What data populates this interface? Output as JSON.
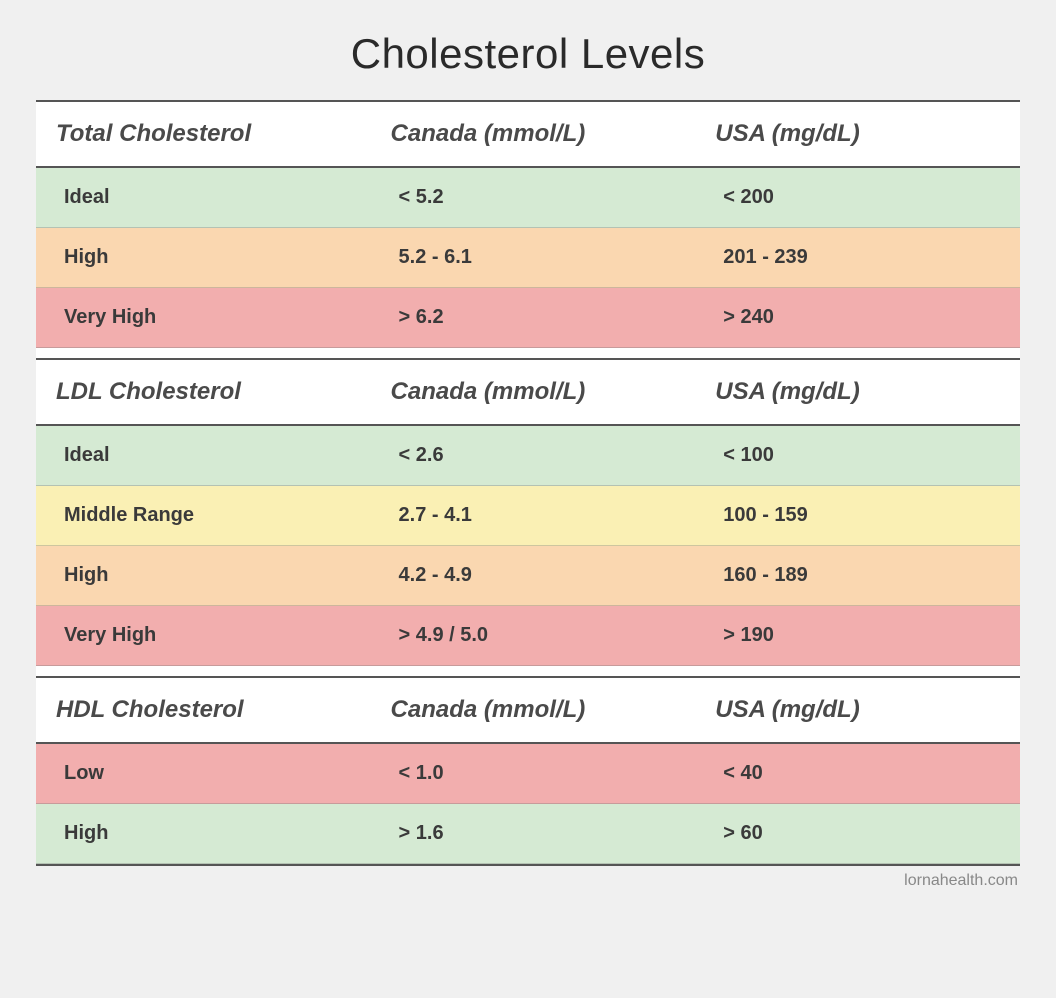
{
  "title": "Cholesterol Levels",
  "title_fontsize": 42,
  "header_fontsize": 24,
  "row_fontsize": 20,
  "attribution": "lornahealth.com",
  "attribution_fontsize": 16,
  "colors": {
    "green": "#d5ead3",
    "yellow": "#faf0b4",
    "orange": "#fad7b0",
    "red": "#f2aeae",
    "header_bg": "#ffffff",
    "page_bg": "#f0f0f0",
    "text": "#3a3a3a",
    "header_text": "#4a4a4a",
    "border": "#555555",
    "row_border": "rgba(120,120,120,0.35)"
  },
  "column_headers": {
    "canada": "Canada (mmol/L)",
    "usa": "USA (mg/dL)"
  },
  "sections": [
    {
      "name": "Total Cholesterol",
      "rows": [
        {
          "label": "Ideal",
          "canada": "< 5.2",
          "usa": "< 200",
          "color": "green"
        },
        {
          "label": "High",
          "canada": "5.2 - 6.1",
          "usa": "201 - 239",
          "color": "orange"
        },
        {
          "label": "Very High",
          "canada": "> 6.2",
          "usa": "> 240",
          "color": "red"
        }
      ]
    },
    {
      "name": "LDL Cholesterol",
      "rows": [
        {
          "label": "Ideal",
          "canada": "< 2.6",
          "usa": "< 100",
          "color": "green"
        },
        {
          "label": "Middle Range",
          "canada": "2.7 - 4.1",
          "usa": "100 - 159",
          "color": "yellow"
        },
        {
          "label": "High",
          "canada": "4.2 - 4.9",
          "usa": "160 - 189",
          "color": "orange"
        },
        {
          "label": "Very High",
          "canada": "> 4.9 / 5.0",
          "usa": "> 190",
          "color": "red"
        }
      ]
    },
    {
      "name": "HDL Cholesterol",
      "rows": [
        {
          "label": "Low",
          "canada": "< 1.0",
          "usa": "< 40",
          "color": "red"
        },
        {
          "label": "High",
          "canada": "> 1.6",
          "usa": "> 60",
          "color": "green"
        }
      ]
    }
  ]
}
